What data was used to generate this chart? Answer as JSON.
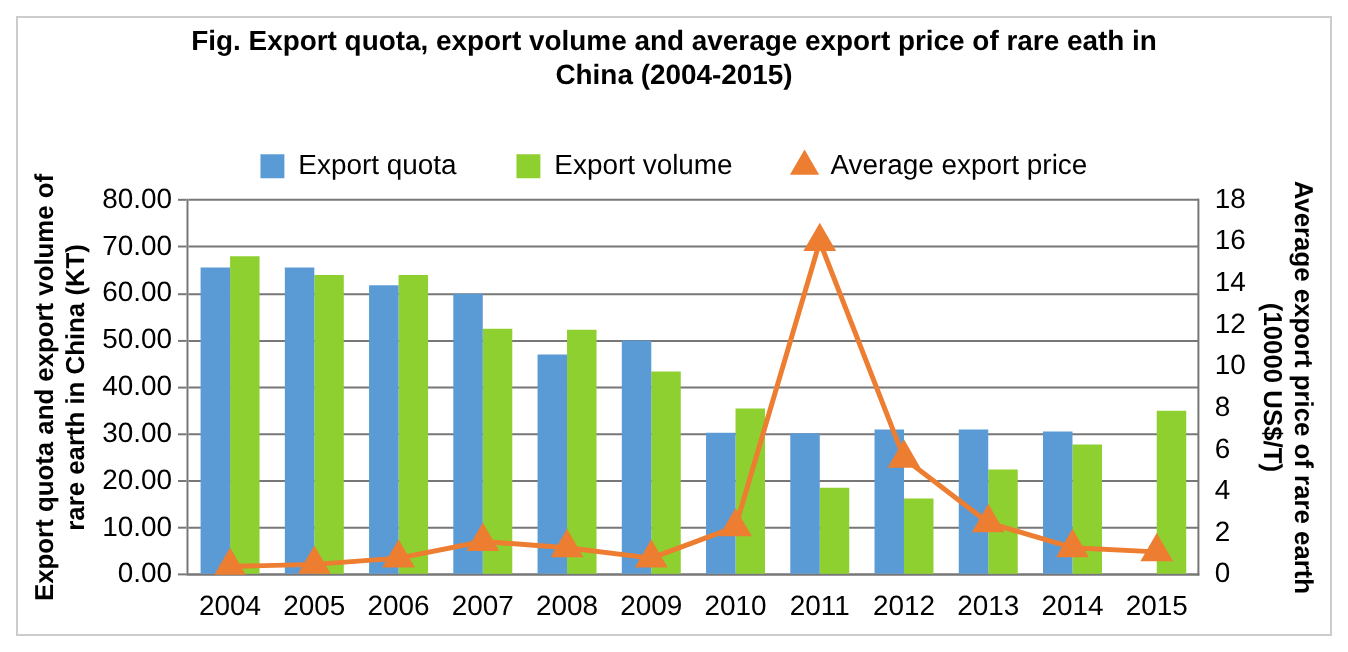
{
  "chart_data": {
    "type": "bar",
    "title": "Fig. Export quota, export volume and average export price of rare eath in China (2004-2015)",
    "categories": [
      "2004",
      "2005",
      "2006",
      "2007",
      "2008",
      "2009",
      "2010",
      "2011",
      "2012",
      "2013",
      "2014",
      "2015"
    ],
    "series": [
      {
        "name": "Export quota",
        "color": "#5b9bd5",
        "values": [
          65.6,
          65.6,
          61.8,
          60,
          47,
          50,
          30.3,
          30.2,
          31,
          31,
          30.6,
          null
        ]
      },
      {
        "name": "Export volume",
        "color": "#8ed02f",
        "values": [
          68,
          64,
          64,
          52.5,
          52.3,
          43.4,
          35.5,
          18.6,
          16.3,
          22.5,
          27.8,
          35
        ]
      },
      {
        "name": "Average export price",
        "type": "line",
        "axis": "y2",
        "color": "#ed7d31",
        "marker": "triangle",
        "values": [
          0.4,
          0.5,
          0.8,
          1.6,
          1.3,
          0.8,
          2.3,
          16,
          5.6,
          2.5,
          1.3,
          1.1
        ]
      }
    ],
    "ylabel": "Export quota and export volume of rare earth in China (KT)",
    "y2label": "Average export price of rare earth (10000 US$/T)",
    "ylim": [
      0,
      80
    ],
    "yticks": [
      {
        "value": 0,
        "label": "0.00"
      },
      {
        "value": 10,
        "label": "10.00"
      },
      {
        "value": 20,
        "label": "20.00"
      },
      {
        "value": 30,
        "label": "30.00"
      },
      {
        "value": 40,
        "label": "40.00"
      },
      {
        "value": 50,
        "label": "50.00"
      },
      {
        "value": 60,
        "label": "60.00"
      },
      {
        "value": 70,
        "label": "70.00"
      },
      {
        "value": 80,
        "label": "80.00"
      }
    ],
    "y2lim": [
      0,
      18
    ],
    "y2ticks": [
      0,
      2,
      4,
      6,
      8,
      10,
      12,
      14,
      16,
      18
    ],
    "grid": "y",
    "legend": "top"
  }
}
